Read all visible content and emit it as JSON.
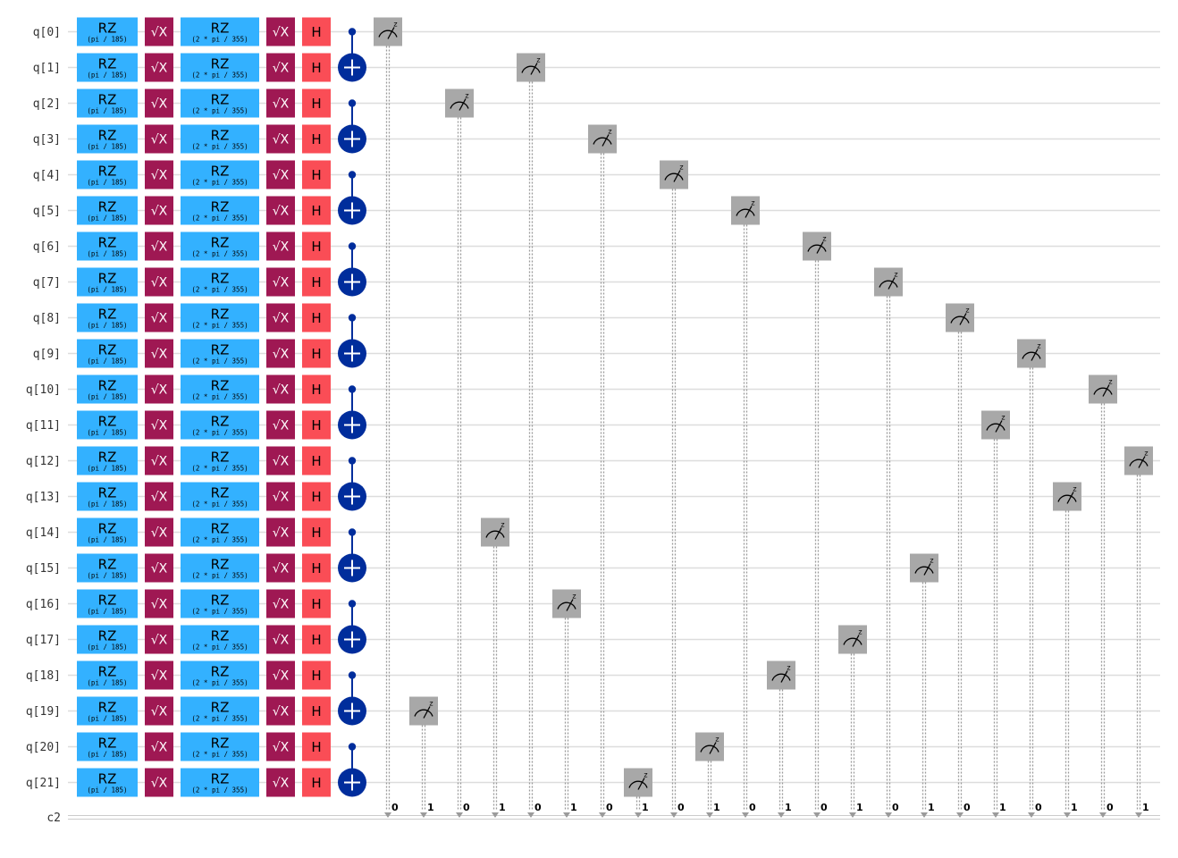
{
  "qubits": [
    "q[0]",
    "q[1]",
    "q[2]",
    "q[3]",
    "q[4]",
    "q[5]",
    "q[6]",
    "q[7]",
    "q[8]",
    "q[9]",
    "q[10]",
    "q[11]",
    "q[12]",
    "q[13]",
    "q[14]",
    "q[15]",
    "q[16]",
    "q[17]",
    "q[18]",
    "q[19]",
    "q[20]",
    "q[21]"
  ],
  "classical_register": "c2",
  "gates": {
    "rz1": {
      "label": "RZ",
      "param": "(pi / 185)",
      "color": "#33b1ff"
    },
    "sx": {
      "label": "√X",
      "color": "#9f1853"
    },
    "rz2": {
      "label": "RZ",
      "param": "(2 * pi / 355)",
      "color": "#33b1ff"
    },
    "h": {
      "label": "H",
      "color": "#fa4d56"
    },
    "cnot_color": "#002d9c",
    "measure_color": "#a8a8a8",
    "measure_basis": "z"
  },
  "cnot_pairs": [
    [
      0,
      1
    ],
    [
      2,
      3
    ],
    [
      4,
      5
    ],
    [
      6,
      7
    ],
    [
      8,
      9
    ],
    [
      10,
      11
    ],
    [
      12,
      13
    ],
    [
      14,
      15
    ],
    [
      16,
      17
    ],
    [
      18,
      19
    ],
    [
      20,
      21
    ]
  ],
  "measurements": [
    {
      "qubit": 0,
      "cbit": "0"
    },
    {
      "qubit": 19,
      "cbit": "1"
    },
    {
      "qubit": 2,
      "cbit": "0"
    },
    {
      "qubit": 14,
      "cbit": "1"
    },
    {
      "qubit": 1,
      "cbit": "0"
    },
    {
      "qubit": 16,
      "cbit": "1"
    },
    {
      "qubit": 3,
      "cbit": "0"
    },
    {
      "qubit": 21,
      "cbit": "1"
    },
    {
      "qubit": 4,
      "cbit": "0"
    },
    {
      "qubit": 20,
      "cbit": "1"
    },
    {
      "qubit": 5,
      "cbit": "0"
    },
    {
      "qubit": 18,
      "cbit": "1"
    },
    {
      "qubit": 6,
      "cbit": "0"
    },
    {
      "qubit": 17,
      "cbit": "1"
    },
    {
      "qubit": 7,
      "cbit": "0"
    },
    {
      "qubit": 15,
      "cbit": "1"
    },
    {
      "qubit": 8,
      "cbit": "0"
    },
    {
      "qubit": 11,
      "cbit": "1"
    },
    {
      "qubit": 9,
      "cbit": "0"
    },
    {
      "qubit": 13,
      "cbit": "1"
    },
    {
      "qubit": 10,
      "cbit": "0"
    },
    {
      "qubit": 12,
      "cbit": "1"
    }
  ]
}
